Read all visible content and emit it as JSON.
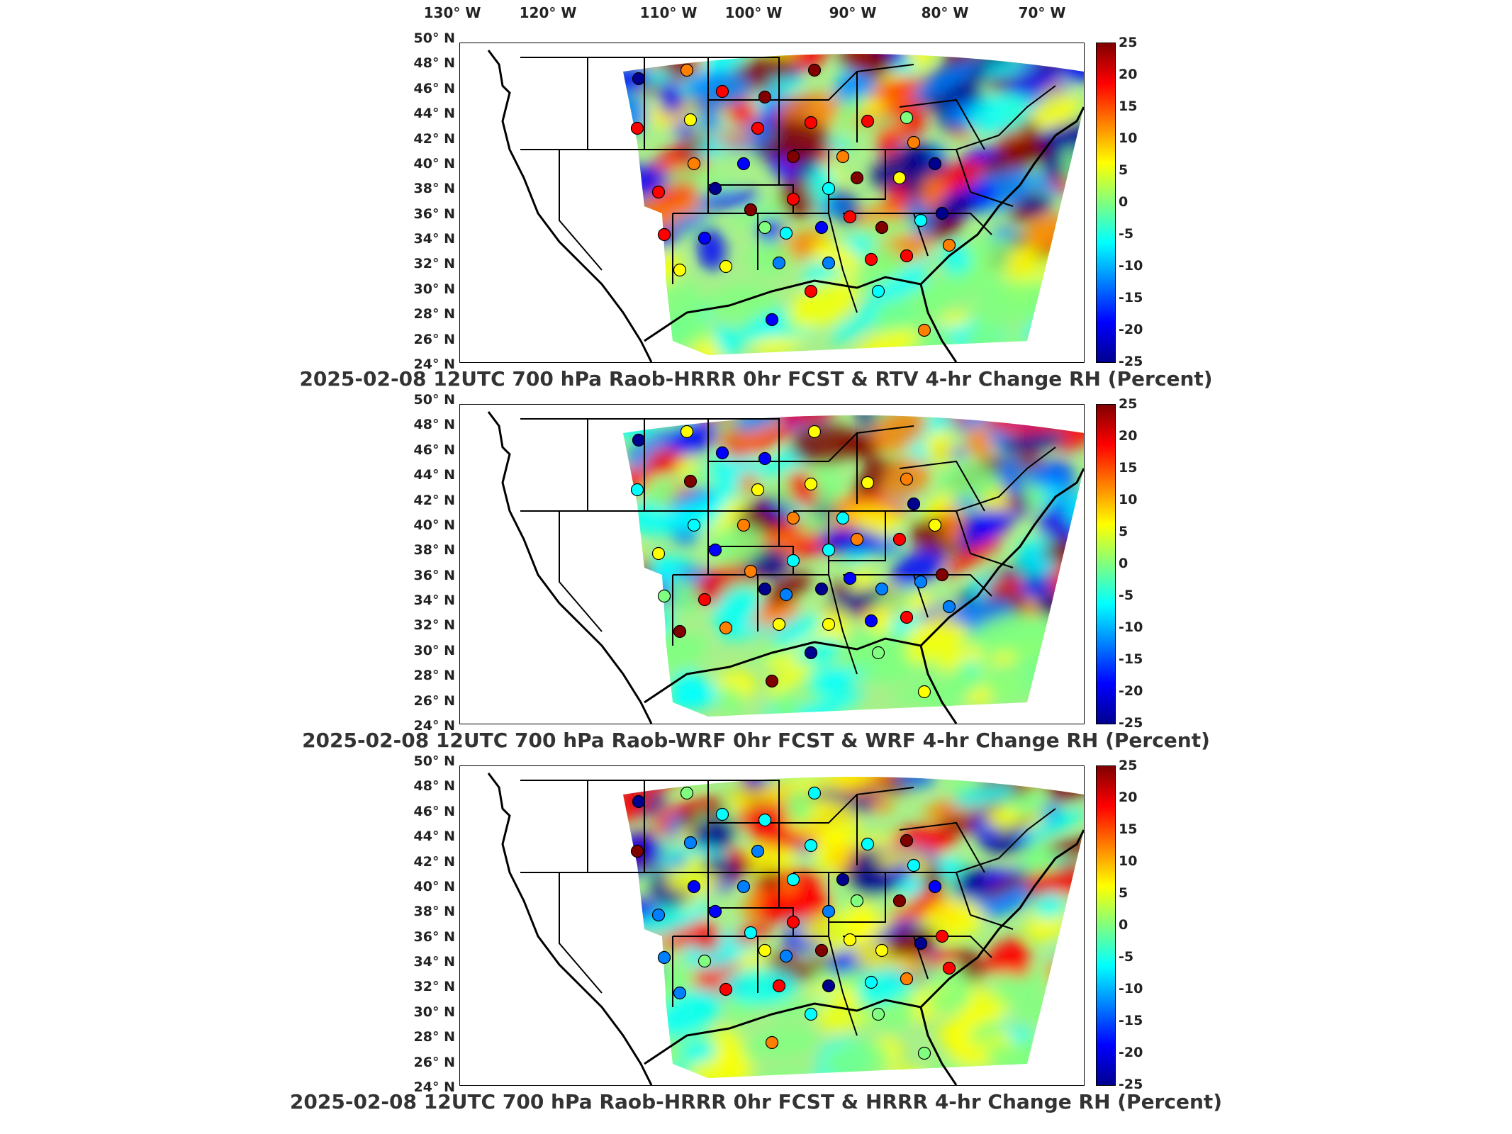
{
  "lon_labels": [
    "130° W",
    "120° W",
    "110° W",
    "100° W",
    "90° W",
    "80° W",
    "70° W"
  ],
  "lat_labels": [
    "50° N",
    "48° N",
    "46° N",
    "44° N",
    "42° N",
    "40° N",
    "38° N",
    "36° N",
    "34° N",
    "32° N",
    "30° N",
    "28° N",
    "26° N",
    "24° N"
  ],
  "colorbar_ticks": [
    "25",
    "20",
    "15",
    "10",
    "5",
    "0",
    "-5",
    "-10",
    "-15",
    "-20",
    "-25"
  ],
  "colormap": [
    "#00008f",
    "#0000ff",
    "#0080ff",
    "#00ffff",
    "#80ff80",
    "#ffff00",
    "#ff8000",
    "#ff0000",
    "#800000"
  ],
  "panels": [
    {
      "title": "2025-02-08 12UTC 700 hPa Raob-HRRR 0hr FCST & RTV 4-hr Change RH (Percent)"
    },
    {
      "title": "2025-02-08 12UTC 700 hPa Raob-WRF 0hr FCST & WRF 4-hr Change RH (Percent)"
    },
    {
      "title": "2025-02-08 12UTC 700 hPa Raob-HRRR 0hr FCST & HRRR 4-hr Change RH (Percent)"
    }
  ]
}
